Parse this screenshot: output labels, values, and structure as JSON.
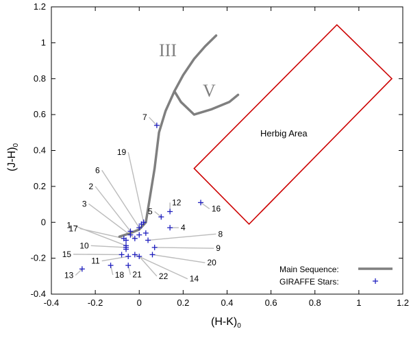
{
  "chart_data": {
    "type": "scatter",
    "xlabel": "(H-K)",
    "xlabel_sub": "0",
    "ylabel": "(J-H)",
    "ylabel_sub": "0",
    "xlim": [
      -0.4,
      1.2
    ],
    "ylim": [
      -0.4,
      1.2
    ],
    "xticks": [
      "-0.4",
      "-0.2",
      "0",
      "0.2",
      "0.4",
      "0.6",
      "0.8",
      "1",
      "1.2"
    ],
    "yticks": [
      "-0.4",
      "-0.2",
      "0",
      "0.2",
      "0.4",
      "0.6",
      "0.8",
      "1",
      "1.2"
    ],
    "sequence_labels": {
      "giant": "III",
      "dwarf": "V"
    },
    "herbig_label": "Herbig Area",
    "herbig_polygon": [
      [
        0.25,
        0.3
      ],
      [
        0.9,
        1.1
      ],
      [
        1.15,
        0.8
      ],
      [
        0.5,
        -0.01
      ]
    ],
    "main_sequence": {
      "name": "Main Sequence:",
      "color": "#7f7f7f",
      "trunk": [
        [
          -0.09,
          -0.08
        ],
        [
          -0.04,
          -0.06
        ],
        [
          0.0,
          -0.04
        ],
        [
          0.03,
          0.0
        ],
        [
          0.05,
          0.15
        ],
        [
          0.07,
          0.3
        ],
        [
          0.09,
          0.5
        ],
        [
          0.12,
          0.62
        ],
        [
          0.16,
          0.73
        ],
        [
          0.2,
          0.82
        ],
        [
          0.25,
          0.91
        ],
        [
          0.3,
          0.98
        ],
        [
          0.35,
          1.04
        ]
      ],
      "dwarf_branch": [
        [
          0.16,
          0.73
        ],
        [
          0.19,
          0.67
        ],
        [
          0.25,
          0.6
        ],
        [
          0.33,
          0.63
        ],
        [
          0.41,
          0.67
        ],
        [
          0.45,
          0.71
        ]
      ]
    },
    "giraffe": {
      "name": "GIRAFFE Stars:",
      "color": "#1f1fbf",
      "stars": [
        {
          "id": "1",
          "x": -0.06,
          "y": -0.13,
          "lx": -0.3,
          "ly": -0.017
        },
        {
          "id": "2",
          "x": -0.04,
          "y": -0.05,
          "lx": -0.2,
          "ly": 0.2
        },
        {
          "id": "3",
          "x": -0.02,
          "y": -0.09,
          "lx": -0.23,
          "ly": 0.103
        },
        {
          "id": "4",
          "x": 0.14,
          "y": -0.03,
          "lx": 0.18,
          "ly": -0.03
        },
        {
          "id": "5",
          "x": 0.1,
          "y": 0.03,
          "lx": 0.07,
          "ly": 0.06
        },
        {
          "id": "6",
          "x": 0.0,
          "y": -0.03,
          "lx": -0.17,
          "ly": 0.29
        },
        {
          "id": "7",
          "x": 0.08,
          "y": 0.54,
          "lx": 0.045,
          "ly": 0.585
        },
        {
          "id": "8",
          "x": 0.04,
          "y": -0.1,
          "lx": 0.35,
          "ly": -0.065
        },
        {
          "id": "9",
          "x": 0.07,
          "y": -0.14,
          "lx": 0.34,
          "ly": -0.145
        },
        {
          "id": "10",
          "x": -0.06,
          "y": -0.14,
          "lx": -0.22,
          "ly": -0.13
        },
        {
          "id": "11",
          "x": -0.05,
          "y": -0.19,
          "lx": -0.17,
          "ly": -0.215
        },
        {
          "id": "12",
          "x": 0.14,
          "y": 0.06,
          "lx": 0.14,
          "ly": 0.11
        },
        {
          "id": "13",
          "x": -0.26,
          "y": -0.26,
          "lx": -0.29,
          "ly": -0.295
        },
        {
          "id": "14",
          "x": -0.02,
          "y": -0.18,
          "lx": 0.22,
          "ly": -0.315
        },
        {
          "id": "15",
          "x": -0.08,
          "y": -0.18,
          "lx": -0.3,
          "ly": -0.178
        },
        {
          "id": "16",
          "x": 0.28,
          "y": 0.11,
          "lx": 0.32,
          "ly": 0.075
        },
        {
          "id": "17",
          "x": -0.07,
          "y": -0.09,
          "lx": -0.27,
          "ly": -0.035
        },
        {
          "id": "18",
          "x": -0.13,
          "y": -0.24,
          "lx": -0.12,
          "ly": -0.293
        },
        {
          "id": "19",
          "x": 0.02,
          "y": 0.0,
          "lx": -0.05,
          "ly": 0.39
        },
        {
          "id": "20",
          "x": 0.06,
          "y": -0.18,
          "lx": 0.3,
          "ly": -0.225
        },
        {
          "id": "21",
          "x": -0.05,
          "y": -0.24,
          "lx": -0.04,
          "ly": -0.292
        },
        {
          "id": "22",
          "x": 0.0,
          "y": -0.19,
          "lx": 0.08,
          "ly": -0.3
        }
      ],
      "extra_markers": [
        {
          "x": 0.0,
          "y": -0.07
        },
        {
          "x": -0.04,
          "y": -0.07
        },
        {
          "x": 0.01,
          "y": -0.01
        },
        {
          "x": 0.03,
          "y": -0.06
        },
        {
          "x": -0.06,
          "y": -0.1
        },
        {
          "x": -0.06,
          "y": -0.15
        }
      ]
    },
    "leader_color": "#bbbbbb",
    "herbig_color": "#cc0000"
  }
}
